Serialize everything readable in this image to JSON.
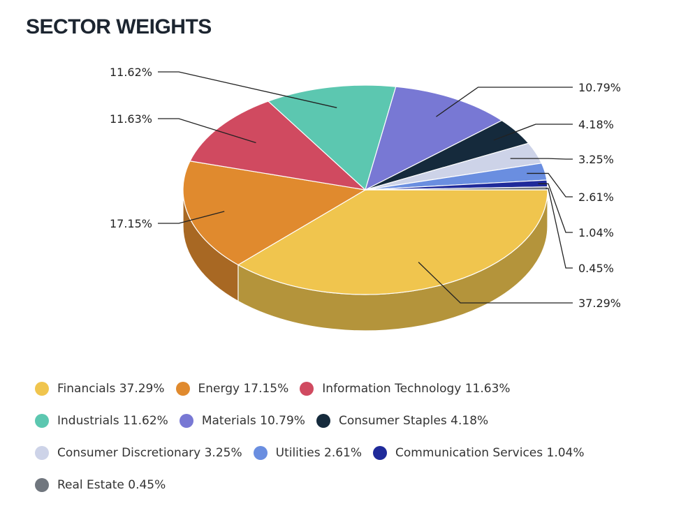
{
  "chart_data": {
    "type": "pie",
    "title": "SECTOR WEIGHTS",
    "style": "3d",
    "legend_position": "bottom",
    "slices": [
      {
        "label": "Financials",
        "value": 37.29,
        "data_label": "37.29%",
        "legend": "Financials 37.29%",
        "color": "#f0c54e"
      },
      {
        "label": "Energy",
        "value": 17.15,
        "data_label": "17.15%",
        "legend": "Energy 17.15%",
        "color": "#e08a2e"
      },
      {
        "label": "Information Technology",
        "value": 11.63,
        "data_label": "11.63%",
        "legend": "Information Technology 11.63%",
        "color": "#d04a60"
      },
      {
        "label": "Industrials",
        "value": 11.62,
        "data_label": "11.62%",
        "legend": "Industrials 11.62%",
        "color": "#5cc7b0"
      },
      {
        "label": "Materials",
        "value": 10.79,
        "data_label": "10.79%",
        "legend": "Materials 10.79%",
        "color": "#7878d4"
      },
      {
        "label": "Consumer Staples",
        "value": 4.18,
        "data_label": "4.18%",
        "legend": "Consumer Staples 4.18%",
        "color": "#152a3c"
      },
      {
        "label": "Consumer Discretionary",
        "value": 3.25,
        "data_label": "3.25%",
        "legend": "Consumer Discretionary 3.25%",
        "color": "#cdd3e8"
      },
      {
        "label": "Utilities",
        "value": 2.61,
        "data_label": "2.61%",
        "legend": "Utilities 2.61%",
        "color": "#6a8ee0"
      },
      {
        "label": "Communication Services",
        "value": 1.04,
        "data_label": "1.04%",
        "legend": "Communication Services 1.04%",
        "color": "#1f2a9a"
      },
      {
        "label": "Real Estate",
        "value": 0.45,
        "data_label": "0.45%",
        "legend": "Real Estate 0.45%",
        "color": "#70767e"
      }
    ]
  }
}
